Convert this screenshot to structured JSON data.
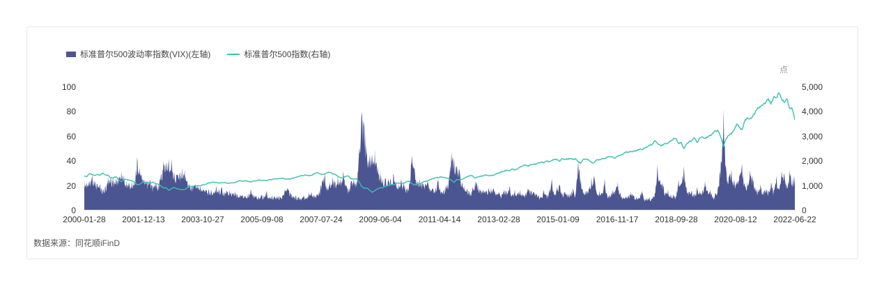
{
  "card": {
    "source": "数据来源：同花顺iFinD"
  },
  "chart_data": {
    "type": "area+line",
    "title": "",
    "x_start": "2000-01",
    "x_end": "2022-06",
    "x_interval": "monthly",
    "x_tick_labels": [
      "2000-01-28",
      "2001-12-13",
      "2003-10-27",
      "2005-09-08",
      "2007-07-24",
      "2009-06-04",
      "2011-04-14",
      "2013-02-28",
      "2015-01-09",
      "2016-11-17",
      "2018-09-28",
      "2020-08-12",
      "2022-06-22"
    ],
    "left_axis": {
      "ticks": [
        0,
        20,
        40,
        60,
        80,
        100
      ],
      "range": [
        0,
        100
      ]
    },
    "right_axis": {
      "ticks": [
        "0",
        "1,000",
        "2,000",
        "3,000",
        "4,000",
        "5,000"
      ],
      "range": [
        0,
        5000
      ],
      "unit": "点"
    },
    "legend_position": "top-left",
    "grid": false,
    "series": [
      {
        "name": "标准普尔500波动率指数(VIX)(左轴)",
        "type": "area",
        "axis": "left",
        "color": "#4b5591",
        "values": [
          24,
          23,
          24,
          29,
          24,
          22,
          21,
          17,
          20,
          27,
          27,
          27,
          25,
          27,
          32,
          28,
          24,
          22,
          24,
          25,
          43,
          35,
          26,
          24,
          24,
          25,
          20,
          23,
          22,
          29,
          40,
          39,
          42,
          42,
          31,
          29,
          31,
          35,
          33,
          24,
          22,
          21,
          21,
          20,
          20,
          17,
          17,
          17,
          17,
          15,
          20,
          17,
          19,
          15,
          16,
          17,
          14,
          16,
          13,
          13,
          13,
          12,
          14,
          17,
          13,
          12,
          11,
          13,
          12,
          16,
          11,
          12,
          12,
          12,
          12,
          12,
          17,
          18,
          15,
          12,
          12,
          11,
          10,
          12,
          10,
          15,
          15,
          13,
          13,
          16,
          24,
          30,
          18,
          23,
          28,
          23,
          28,
          26,
          32,
          21,
          18,
          24,
          25,
          21,
          46,
          80,
          72,
          45,
          45,
          46,
          49,
          36,
          32,
          26,
          26,
          26,
          26,
          30,
          24,
          22,
          25,
          23,
          17,
          22,
          45,
          34,
          25,
          26,
          23,
          21,
          23,
          18,
          18,
          19,
          25,
          16,
          17,
          21,
          25,
          48,
          43,
          36,
          34,
          23,
          20,
          18,
          15,
          19,
          24,
          21,
          17,
          17,
          16,
          18,
          18,
          18,
          14,
          15,
          13,
          17,
          16,
          20,
          13,
          17,
          14,
          17,
          13,
          14,
          18,
          16,
          15,
          14,
          12,
          11,
          17,
          12,
          16,
          26,
          13,
          19,
          21,
          14,
          15,
          14,
          14,
          18,
          13,
          40,
          26,
          15,
          16,
          18,
          27,
          28,
          14,
          16,
          14,
          26,
          12,
          13,
          17,
          17,
          23,
          14,
          11,
          12,
          12,
          15,
          12,
          11,
          10,
          16,
          10,
          10,
          11,
          10,
          14,
          37,
          25,
          22,
          15,
          17,
          13,
          13,
          12,
          25,
          22,
          36,
          18,
          15,
          16,
          13,
          19,
          16,
          16,
          24,
          16,
          17,
          12,
          14,
          19,
          40,
          82,
          34,
          28,
          33,
          25,
          23,
          29,
          38,
          21,
          23,
          33,
          28,
          19,
          17,
          21,
          16,
          18,
          16,
          23,
          16,
          28,
          17,
          32,
          30,
          21,
          33,
          26,
          29
        ]
      },
      {
        "name": "标准普尔500指数(右轴)",
        "type": "line",
        "axis": "right",
        "color": "#3cbfae",
        "values": [
          1394,
          1366,
          1499,
          1452,
          1421,
          1455,
          1431,
          1518,
          1437,
          1429,
          1315,
          1320,
          1366,
          1240,
          1160,
          1249,
          1256,
          1224,
          1211,
          1134,
          1041,
          1060,
          1139,
          1148,
          1130,
          1107,
          1147,
          1077,
          1067,
          990,
          912,
          916,
          815,
          886,
          936,
          880,
          856,
          841,
          848,
          917,
          964,
          975,
          990,
          1008,
          996,
          1051,
          1058,
          1112,
          1131,
          1145,
          1126,
          1107,
          1121,
          1141,
          1102,
          1104,
          1114,
          1130,
          1174,
          1212,
          1181,
          1204,
          1181,
          1157,
          1192,
          1191,
          1234,
          1220,
          1229,
          1207,
          1249,
          1248,
          1280,
          1281,
          1295,
          1311,
          1270,
          1270,
          1277,
          1304,
          1336,
          1378,
          1401,
          1418,
          1438,
          1407,
          1421,
          1482,
          1531,
          1503,
          1455,
          1474,
          1527,
          1549,
          1481,
          1468,
          1379,
          1331,
          1323,
          1386,
          1400,
          1280,
          1267,
          1283,
          1166,
          969,
          896,
          903,
          826,
          735,
          798,
          873,
          919,
          919,
          987,
          1021,
          1057,
          1036,
          1096,
          1115,
          1074,
          1104,
          1169,
          1187,
          1089,
          1031,
          1102,
          1049,
          1141,
          1183,
          1181,
          1258,
          1286,
          1327,
          1326,
          1364,
          1345,
          1321,
          1292,
          1219,
          1131,
          1253,
          1247,
          1258,
          1312,
          1366,
          1408,
          1398,
          1310,
          1362,
          1379,
          1407,
          1441,
          1412,
          1416,
          1426,
          1498,
          1515,
          1569,
          1598,
          1631,
          1606,
          1686,
          1633,
          1682,
          1757,
          1806,
          1848,
          1783,
          1859,
          1872,
          1884,
          1924,
          1960,
          1931,
          2003,
          1972,
          2018,
          2068,
          2059,
          1995,
          2105,
          2068,
          2086,
          2107,
          2063,
          2104,
          1972,
          1920,
          2079,
          2080,
          2044,
          1940,
          1932,
          2060,
          2065,
          2097,
          2099,
          2174,
          2171,
          2168,
          2126,
          2199,
          2239,
          2279,
          2364,
          2363,
          2384,
          2412,
          2423,
          2470,
          2472,
          2519,
          2575,
          2648,
          2674,
          2824,
          2714,
          2641,
          2648,
          2705,
          2718,
          2816,
          2902,
          2914,
          2712,
          2760,
          2507,
          2704,
          2784,
          2834,
          2946,
          2752,
          2942,
          2980,
          2926,
          2977,
          3038,
          3141,
          3231,
          3226,
          2954,
          2585,
          2912,
          3044,
          3100,
          3271,
          3500,
          3363,
          3270,
          3622,
          3756,
          3714,
          3811,
          3973,
          4181,
          4204,
          4298,
          4395,
          4523,
          4308,
          4605,
          4567,
          4766,
          4516,
          4374,
          4530,
          4132,
          4132,
          3675
        ]
      }
    ]
  }
}
